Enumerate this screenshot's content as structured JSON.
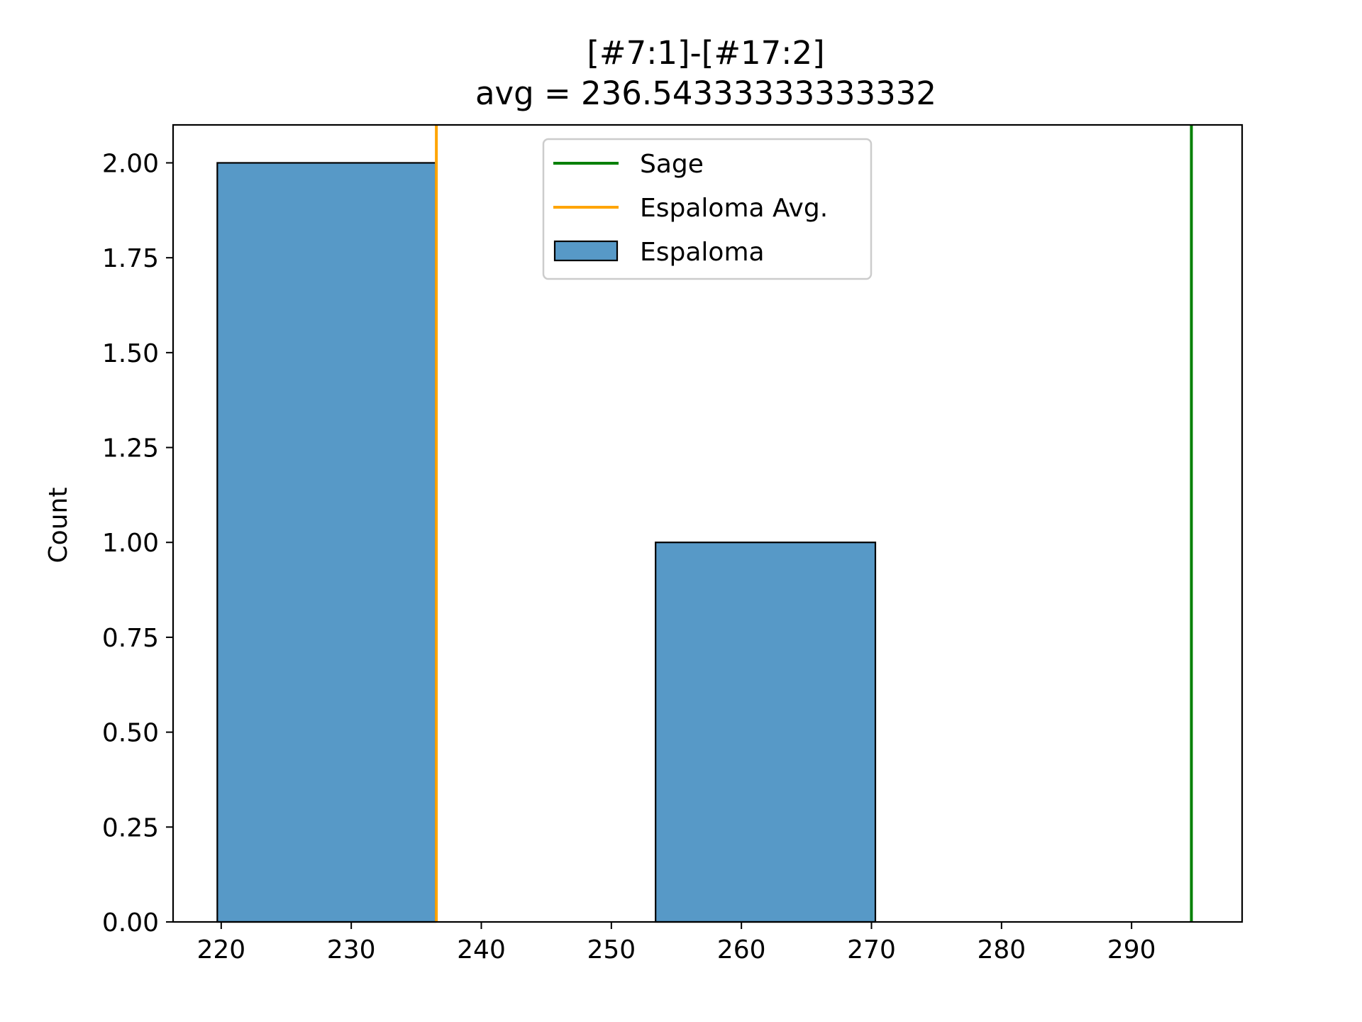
{
  "chart_data": {
    "type": "bar",
    "title": "[#7:1]-[#17:2]",
    "subtitle": "avg = 236.54333333333332",
    "xlabel": "",
    "ylabel": "Count",
    "xlim": [
      216.3,
      298.5
    ],
    "ylim": [
      0,
      2.1
    ],
    "x_ticks": [
      220,
      230,
      240,
      250,
      260,
      270,
      280,
      290
    ],
    "y_ticks": [
      "0.00",
      "0.25",
      "0.50",
      "0.75",
      "1.00",
      "1.25",
      "1.50",
      "1.75",
      "2.00"
    ],
    "histogram": {
      "name": "Espaloma",
      "bins": [
        {
          "x0": 219.7,
          "x1": 236.5,
          "count": 2
        },
        {
          "x0": 236.5,
          "x1": 253.4,
          "count": 0
        },
        {
          "x0": 253.4,
          "x1": 270.3,
          "count": 1
        }
      ],
      "color": "#5799c7"
    },
    "vlines": [
      {
        "name": "Sage",
        "x": 294.6,
        "color": "#008000"
      },
      {
        "name": "Espaloma Avg.",
        "x": 236.54333333333332,
        "color": "#ffa500"
      }
    ],
    "legend": {
      "position": "upper-center",
      "entries": [
        {
          "label": "Sage",
          "kind": "line",
          "color": "#008000"
        },
        {
          "label": "Espaloma Avg.",
          "kind": "line",
          "color": "#ffa500"
        },
        {
          "label": "Espaloma",
          "kind": "patch",
          "color": "#5799c7"
        }
      ]
    },
    "grid": false
  }
}
